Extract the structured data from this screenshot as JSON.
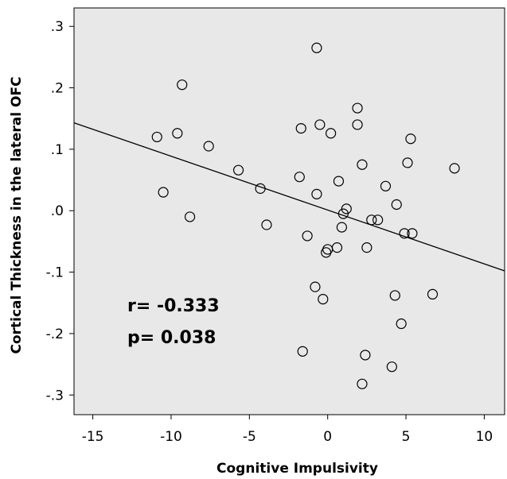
{
  "chart_data": {
    "type": "scatter",
    "xlabel": "Cognitive Impulsivity",
    "ylabel": "Cortical Thickness in the lateral OFC",
    "xlim": [
      -16.2,
      11.3
    ],
    "ylim": [
      -0.332,
      0.33
    ],
    "x_ticks": [
      -15,
      -10,
      -5,
      0,
      5,
      10
    ],
    "x_tick_labels": [
      "-15",
      "-10",
      "-5",
      "0",
      "5",
      "10"
    ],
    "y_ticks": [
      0.3,
      0.2,
      0.1,
      0.0,
      -0.1,
      -0.2,
      -0.3
    ],
    "y_tick_labels": [
      ".3",
      ".2",
      ".1",
      ".0",
      "-.1",
      "-.2",
      "-.3"
    ],
    "grid": false,
    "background_color": "#e8e8e8",
    "fit_line": {
      "x": [
        -16.2,
        11.3
      ],
      "y": [
        0.143,
        -0.098
      ]
    },
    "annotations": [
      "r= -0.333",
      "p= 0.038"
    ],
    "points": [
      {
        "x": -0.7,
        "y": 0.265
      },
      {
        "x": -9.3,
        "y": 0.205
      },
      {
        "x": 1.9,
        "y": 0.167
      },
      {
        "x": -0.5,
        "y": 0.14
      },
      {
        "x": 1.9,
        "y": 0.14
      },
      {
        "x": -1.7,
        "y": 0.134
      },
      {
        "x": 0.2,
        "y": 0.126
      },
      {
        "x": -9.6,
        "y": 0.126
      },
      {
        "x": -10.9,
        "y": 0.12
      },
      {
        "x": 5.3,
        "y": 0.117
      },
      {
        "x": -7.6,
        "y": 0.105
      },
      {
        "x": 2.2,
        "y": 0.075
      },
      {
        "x": 5.1,
        "y": 0.078
      },
      {
        "x": 8.1,
        "y": 0.069
      },
      {
        "x": -5.7,
        "y": 0.066
      },
      {
        "x": -1.8,
        "y": 0.055
      },
      {
        "x": 0.7,
        "y": 0.048
      },
      {
        "x": 3.7,
        "y": 0.04
      },
      {
        "x": -4.3,
        "y": 0.036
      },
      {
        "x": -10.5,
        "y": 0.03
      },
      {
        "x": -0.7,
        "y": 0.027
      },
      {
        "x": 4.4,
        "y": 0.01
      },
      {
        "x": 1.2,
        "y": 0.003
      },
      {
        "x": 1.0,
        "y": -0.005
      },
      {
        "x": -8.8,
        "y": -0.01
      },
      {
        "x": 2.8,
        "y": -0.015
      },
      {
        "x": 3.2,
        "y": -0.015
      },
      {
        "x": -3.9,
        "y": -0.023
      },
      {
        "x": 0.9,
        "y": -0.027
      },
      {
        "x": 4.9,
        "y": -0.037
      },
      {
        "x": 5.4,
        "y": -0.037
      },
      {
        "x": -1.3,
        "y": -0.041
      },
      {
        "x": 0.6,
        "y": -0.06
      },
      {
        "x": 2.5,
        "y": -0.06
      },
      {
        "x": 0.0,
        "y": -0.063
      },
      {
        "x": -0.1,
        "y": -0.068
      },
      {
        "x": -0.8,
        "y": -0.124
      },
      {
        "x": 6.7,
        "y": -0.136
      },
      {
        "x": 4.3,
        "y": -0.138
      },
      {
        "x": -0.3,
        "y": -0.144
      },
      {
        "x": 4.7,
        "y": -0.184
      },
      {
        "x": -1.6,
        "y": -0.229
      },
      {
        "x": 2.4,
        "y": -0.235
      },
      {
        "x": 4.1,
        "y": -0.254
      },
      {
        "x": 2.2,
        "y": -0.282
      }
    ]
  }
}
